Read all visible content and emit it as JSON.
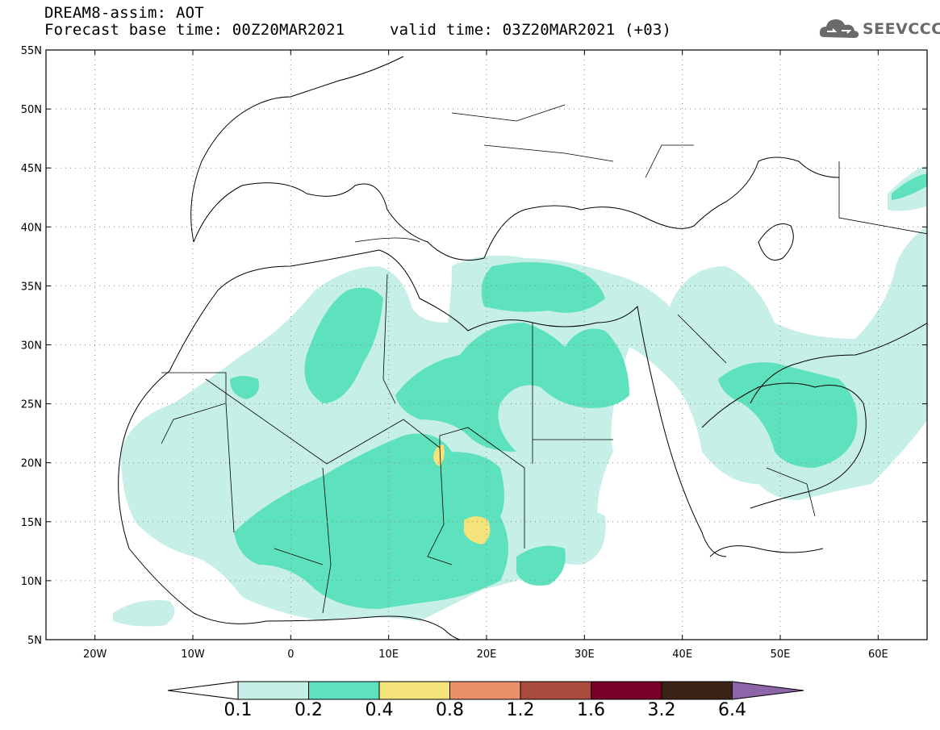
{
  "header": {
    "line1": "DREAM8-assim: AOT",
    "line2": "Forecast base time: 00Z20MAR2021",
    "line3": "valid time: 03Z20MAR2021 (+03)"
  },
  "logo": {
    "text": "SEEVCCC",
    "icon": "cloud-icon"
  },
  "map": {
    "lon_range": [
      -25,
      65
    ],
    "lat_range": [
      5,
      55
    ],
    "lat_labels": [
      "55N",
      "50N",
      "45N",
      "40N",
      "35N",
      "30N",
      "25N",
      "20N",
      "15N",
      "10N",
      "5N"
    ],
    "lon_labels": [
      "20W",
      "10W",
      "0",
      "10E",
      "20E",
      "30E",
      "40E",
      "50E",
      "60E"
    ],
    "grid": "dotted"
  },
  "colorbar": {
    "labels": [
      "0.1",
      "0.2",
      "0.4",
      "0.8",
      "1.2",
      "1.6",
      "3.2",
      "6.4"
    ],
    "colors": [
      "#ffffff",
      "#c6efe8",
      "#5ee1bd",
      "#f4e37a",
      "#e9906b",
      "#a84b3c",
      "#7a0028",
      "#3a2416",
      "#8e64a8"
    ]
  }
}
